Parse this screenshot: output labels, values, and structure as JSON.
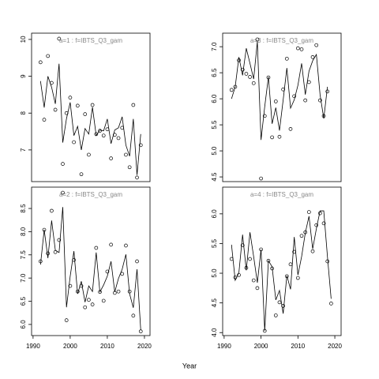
{
  "xlabel": "Year",
  "chart_data": [
    {
      "type": "line",
      "title": "a=1  :  f=IBTS_Q3_gam",
      "x": [
        1992,
        1993,
        1994,
        1995,
        1996,
        1997,
        1998,
        1999,
        2000,
        2001,
        2002,
        2003,
        2004,
        2005,
        2006,
        2007,
        2008,
        2009,
        2010,
        2011,
        2012,
        2013,
        2014,
        2015,
        2016,
        2017,
        2018,
        2019
      ],
      "xlim": [
        1989.6,
        2021.5
      ],
      "ylim": [
        6.14,
        10.17
      ],
      "yticks": [
        7,
        8,
        9,
        10
      ],
      "series": [
        {
          "marker": "circle",
          "color": "#000000",
          "values": [
            9.38,
            7.82,
            9.55,
            8.82,
            8.09,
            10.02,
            6.62,
            8.0,
            8.42,
            7.21,
            8.2,
            6.34,
            7.97,
            6.87,
            8.22,
            7.43,
            7.52,
            7.39,
            7.56,
            6.77,
            7.41,
            7.32,
            7.6,
            6.87,
            6.53,
            8.22,
            6.25,
            7.13
          ]
        },
        {
          "color": "#000000",
          "values": [
            8.87,
            8.15,
            9.0,
            8.7,
            8.25,
            9.34,
            7.2,
            7.85,
            8.29,
            7.39,
            7.64,
            7.0,
            7.58,
            7.43,
            8.16,
            7.39,
            7.54,
            7.52,
            7.84,
            7.17,
            7.54,
            7.6,
            7.9,
            7.13,
            6.83,
            7.84,
            6.32,
            7.43
          ]
        }
      ]
    },
    {
      "type": "line",
      "title": "a=3  :  f=IBTS_Q3_gam",
      "x": [
        1992,
        1993,
        1994,
        1995,
        1996,
        1997,
        1998,
        1999,
        2000,
        2001,
        2002,
        2003,
        2004,
        2005,
        2006,
        2007,
        2008,
        2009,
        2010,
        2011,
        2012,
        2013,
        2014,
        2015,
        2016,
        2017,
        2018
      ],
      "xlim": [
        1989.6,
        2021.7
      ],
      "ylim": [
        4.41,
        7.26
      ],
      "yticks": [
        4.5,
        {
          "value": 5,
          "label": "5.0"
        },
        5.5,
        {
          "value": 6,
          "label": "6.0"
        },
        6.5,
        {
          "value": 7,
          "label": "7.0"
        }
      ],
      "series": [
        {
          "marker": "circle",
          "color": "#000000",
          "values": [
            6.17,
            6.23,
            6.74,
            6.56,
            6.48,
            6.42,
            6.3,
            7.14,
            4.47,
            5.67,
            6.41,
            5.26,
            5.95,
            5.27,
            6.18,
            6.77,
            5.42,
            6.05,
            6.97,
            6.95,
            5.97,
            6.32,
            6.8,
            7.03,
            5.97,
            5.67,
            6.14
          ]
        },
        {
          "color": "#000000",
          "values": [
            6.0,
            6.23,
            6.8,
            6.45,
            6.97,
            6.68,
            6.38,
            7.1,
            5.21,
            5.85,
            6.42,
            5.52,
            5.83,
            5.39,
            5.98,
            6.59,
            5.82,
            5.98,
            6.26,
            6.68,
            6.08,
            6.53,
            6.73,
            6.85,
            6.08,
            5.62,
            6.23
          ]
        }
      ]
    },
    {
      "type": "line",
      "title": "a=2  :  f=IBTS_Q3_gam",
      "x": [
        1992,
        1993,
        1994,
        1995,
        1996,
        1997,
        1998,
        1999,
        2000,
        2001,
        2002,
        2003,
        2004,
        2005,
        2006,
        2007,
        2008,
        2009,
        2010,
        2011,
        2012,
        2013,
        2014,
        2015,
        2016,
        2017,
        2018,
        2019
      ],
      "xlim": [
        1989.6,
        2021.5
      ],
      "xticks": [
        1990,
        2000,
        2010,
        2020
      ],
      "ylim": [
        5.76,
        8.96
      ],
      "yticks": [
        {
          "value": 6,
          "label": "6.0"
        },
        6.5,
        {
          "value": 7,
          "label": "7.0"
        },
        7.5,
        {
          "value": 8,
          "label": "8.0"
        },
        8.5
      ],
      "series": [
        {
          "marker": "circle",
          "color": "#000000",
          "values": [
            7.36,
            8.04,
            7.53,
            8.45,
            7.56,
            7.82,
            8.84,
            6.09,
            6.83,
            7.39,
            6.71,
            6.83,
            6.37,
            6.53,
            6.43,
            7.65,
            6.7,
            6.51,
            7.14,
            7.72,
            6.68,
            6.71,
            7.09,
            7.7,
            6.71,
            6.19,
            7.36,
            5.85
          ]
        },
        {
          "color": "#000000",
          "values": [
            7.29,
            8.04,
            7.43,
            8.24,
            7.6,
            7.55,
            8.53,
            6.37,
            7.04,
            7.58,
            6.66,
            6.93,
            6.48,
            6.83,
            6.71,
            7.55,
            6.7,
            6.85,
            7.04,
            7.36,
            6.7,
            6.99,
            7.19,
            7.51,
            6.66,
            6.36,
            7.19,
            5.88
          ]
        }
      ]
    },
    {
      "type": "line",
      "title": "a=4  :  f=IBTS_Q3_gam",
      "x": [
        1992,
        1993,
        1994,
        1995,
        1996,
        1997,
        1998,
        1999,
        2000,
        2001,
        2002,
        2003,
        2004,
        2005,
        2006,
        2007,
        2008,
        2009,
        2010,
        2011,
        2012,
        2013,
        2014,
        2015,
        2016,
        2017,
        2018,
        2019
      ],
      "xlim": [
        1989.6,
        2021.7
      ],
      "xticks": [
        1990,
        2000,
        2010,
        2020
      ],
      "ylim": [
        3.95,
        6.45
      ],
      "yticks": [
        {
          "value": 4,
          "label": "4.0"
        },
        4.5,
        {
          "value": 5,
          "label": "5.0"
        },
        5.5,
        {
          "value": 6,
          "label": "6.0"
        }
      ],
      "series": [
        {
          "marker": "circle",
          "color": "#000000",
          "values": [
            5.24,
            4.93,
            4.97,
            5.47,
            5.09,
            5.24,
            4.88,
            4.75,
            5.4,
            4.03,
            5.21,
            5.08,
            4.29,
            4.51,
            4.45,
            4.95,
            5.15,
            5.36,
            4.92,
            5.63,
            5.69,
            6.03,
            5.37,
            5.81,
            6.01,
            5.84,
            5.2,
            4.49
          ]
        },
        {
          "color": "#000000",
          "values": [
            5.48,
            4.88,
            5.01,
            5.65,
            5.05,
            5.69,
            5.28,
            4.84,
            5.4,
            4.03,
            5.21,
            5.11,
            4.55,
            4.71,
            4.32,
            4.96,
            4.73,
            5.61,
            4.97,
            5.28,
            5.68,
            5.96,
            5.41,
            5.75,
            6.05,
            6.05,
            5.28,
            4.57
          ]
        }
      ]
    }
  ]
}
